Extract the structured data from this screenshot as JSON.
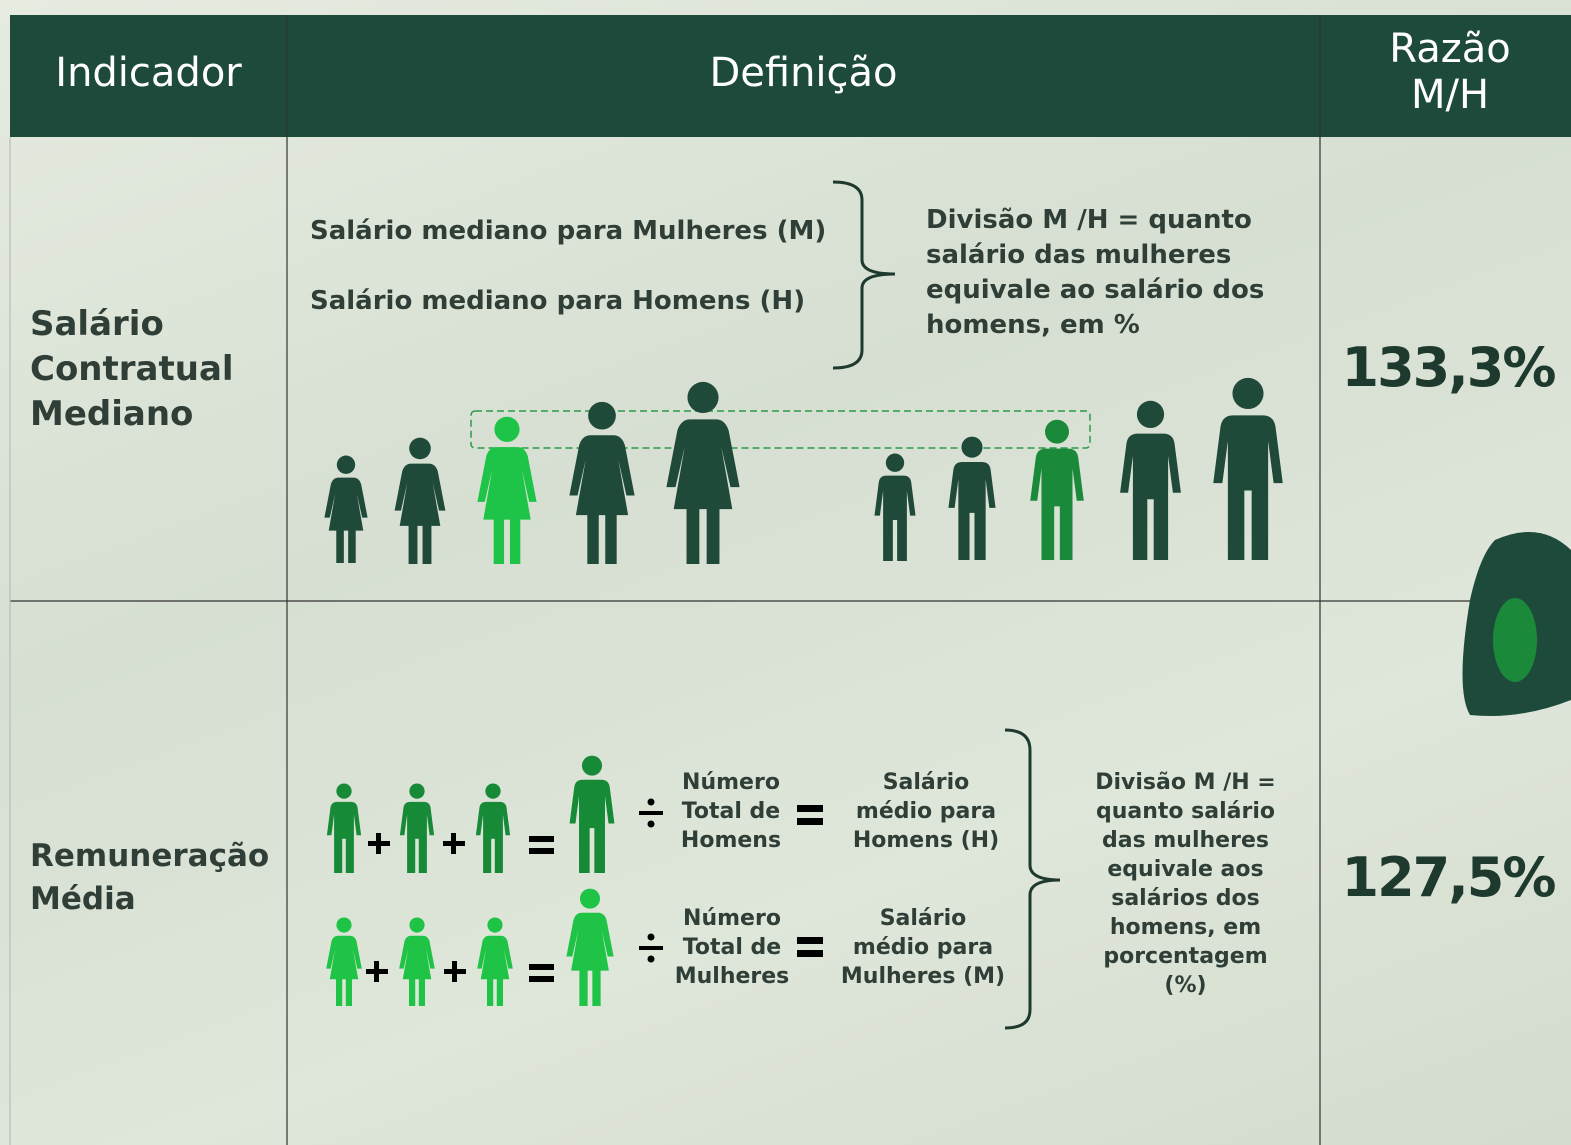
{
  "table": {
    "header": [
      "Indicador",
      "Definição",
      "Razão M/H"
    ],
    "rows": [
      {
        "indicator": "Salário Contratual Mediano",
        "definition": {
          "women": "Salário mediano para Mulheres (M)",
          "men": "Salário mediano para Homens (H)",
          "division": "Divisão M /H = quanto salário das mulheres equivale ao salário dos  homens, em %"
        },
        "ratio": "133,3%"
      },
      {
        "indicator": "Remuneração Média",
        "definition": {
          "men_count": "Número Total de Homens",
          "men_salary": "Salário médio para Homens (H)",
          "women_count": "Número Total de Mulheres",
          "women_salary": "Salário médio para Mulheres (M)",
          "division": "Divisão M /H = quanto salário das mulheres equivale aos salários dos homens, em porcentagem (%)"
        },
        "ratio": "127,5%"
      }
    ]
  }
}
